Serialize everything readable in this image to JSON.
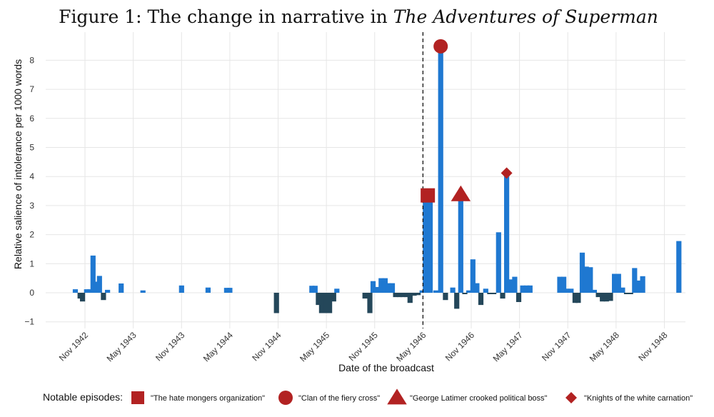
{
  "chart_data": {
    "type": "bar",
    "title": {
      "prefix": "Figure 1: The change in narrative in ",
      "italic": "The Adventures of Superman"
    },
    "xlabel": "Date of the broadcast",
    "ylabel": "Relative salience of intolerance per 1000 words",
    "ylim": [
      -1,
      8.7
    ],
    "yticks": [
      -1,
      0,
      1,
      2,
      3,
      4,
      5,
      6,
      7,
      8
    ],
    "ytick_labels": [
      "−1",
      "0",
      "1",
      "2",
      "3",
      "4",
      "5",
      "6",
      "7",
      "8"
    ],
    "xlim_months": [
      -2,
      73
    ],
    "xticks": [
      {
        "label": "Nov 1942",
        "month": 0
      },
      {
        "label": "May 1943",
        "month": 6
      },
      {
        "label": "Nov 1943",
        "month": 12
      },
      {
        "label": "May 1944",
        "month": 18
      },
      {
        "label": "Nov 1944",
        "month": 24
      },
      {
        "label": "May 1945",
        "month": 30
      },
      {
        "label": "Nov 1945",
        "month": 36
      },
      {
        "label": "May 1946",
        "month": 42
      },
      {
        "label": "Nov 1946",
        "month": 48
      },
      {
        "label": "May 1947",
        "month": 54
      },
      {
        "label": "Nov 1947",
        "month": 60
      },
      {
        "label": "May 1948",
        "month": 66
      },
      {
        "label": "Nov 1948",
        "month": 72
      }
    ],
    "reference_line_month": 42,
    "colors": {
      "positive": "#1f78d1",
      "negative": "#24475a",
      "marker": "#b22222"
    },
    "series": [
      {
        "name": "salience",
        "points": [
          {
            "month": -1.2,
            "value": 0.12
          },
          {
            "month": -0.6,
            "value": -0.2
          },
          {
            "month": -0.3,
            "value": -0.3
          },
          {
            "month": 0.2,
            "value": 0.12
          },
          {
            "month": 0.6,
            "value": 0.12
          },
          {
            "month": 1.0,
            "value": 1.28
          },
          {
            "month": 1.4,
            "value": 0.38
          },
          {
            "month": 1.8,
            "value": 0.58
          },
          {
            "month": 2.3,
            "value": -0.25
          },
          {
            "month": 2.8,
            "value": 0.1
          },
          {
            "month": 4.5,
            "value": 0.32
          },
          {
            "month": 7.2,
            "value": 0.08
          },
          {
            "month": 12.0,
            "value": 0.25
          },
          {
            "month": 15.3,
            "value": 0.18
          },
          {
            "month": 17.6,
            "value": 0.17
          },
          {
            "month": 18.0,
            "value": 0.17
          },
          {
            "month": 23.8,
            "value": -0.7
          },
          {
            "month": 28.2,
            "value": 0.24
          },
          {
            "month": 28.6,
            "value": 0.24
          },
          {
            "month": 29.0,
            "value": -0.42
          },
          {
            "month": 29.4,
            "value": -0.7
          },
          {
            "month": 29.9,
            "value": -0.7
          },
          {
            "month": 30.4,
            "value": -0.7
          },
          {
            "month": 30.9,
            "value": -0.3
          },
          {
            "month": 31.3,
            "value": 0.14
          },
          {
            "month": 34.8,
            "value": -0.2
          },
          {
            "month": 35.4,
            "value": -0.7
          },
          {
            "month": 35.8,
            "value": 0.4
          },
          {
            "month": 36.3,
            "value": 0.2
          },
          {
            "month": 36.8,
            "value": 0.5
          },
          {
            "month": 37.3,
            "value": 0.5
          },
          {
            "month": 37.7,
            "value": 0.33
          },
          {
            "month": 38.2,
            "value": 0.33
          },
          {
            "month": 38.6,
            "value": -0.15
          },
          {
            "month": 39.1,
            "value": -0.15
          },
          {
            "month": 39.5,
            "value": -0.15
          },
          {
            "month": 40.0,
            "value": -0.15
          },
          {
            "month": 40.4,
            "value": -0.35
          },
          {
            "month": 40.9,
            "value": -0.1
          },
          {
            "month": 41.4,
            "value": -0.08
          },
          {
            "month": 41.9,
            "value": 0.08
          },
          {
            "month": 42.3,
            "value": 3.32
          },
          {
            "month": 42.9,
            "value": 3.32
          },
          {
            "month": 43.6,
            "value": 0.08
          },
          {
            "month": 44.2,
            "value": 8.45
          },
          {
            "month": 44.8,
            "value": -0.25
          },
          {
            "month": 45.7,
            "value": 0.18
          },
          {
            "month": 46.2,
            "value": -0.55
          },
          {
            "month": 46.7,
            "value": 3.38
          },
          {
            "month": 47.2,
            "value": -0.05
          },
          {
            "month": 47.7,
            "value": 0.08
          },
          {
            "month": 48.2,
            "value": 1.15
          },
          {
            "month": 48.7,
            "value": 0.33
          },
          {
            "month": 49.2,
            "value": -0.42
          },
          {
            "month": 49.8,
            "value": 0.14
          },
          {
            "month": 50.3,
            "value": -0.05
          },
          {
            "month": 50.8,
            "value": -0.05
          },
          {
            "month": 51.4,
            "value": 2.08
          },
          {
            "month": 51.9,
            "value": -0.2
          },
          {
            "month": 52.4,
            "value": 4.12
          },
          {
            "month": 52.9,
            "value": 0.46
          },
          {
            "month": 53.4,
            "value": 0.55
          },
          {
            "month": 53.9,
            "value": -0.32
          },
          {
            "month": 54.4,
            "value": 0.25
          },
          {
            "month": 54.9,
            "value": 0.25
          },
          {
            "month": 55.3,
            "value": 0.25
          },
          {
            "month": 59.0,
            "value": 0.55
          },
          {
            "month": 59.5,
            "value": 0.55
          },
          {
            "month": 59.9,
            "value": 0.14
          },
          {
            "month": 60.4,
            "value": 0.14
          },
          {
            "month": 60.9,
            "value": -0.35
          },
          {
            "month": 61.3,
            "value": -0.35
          },
          {
            "month": 61.8,
            "value": 1.38
          },
          {
            "month": 62.3,
            "value": 0.9
          },
          {
            "month": 62.8,
            "value": 0.88
          },
          {
            "month": 63.3,
            "value": 0.1
          },
          {
            "month": 63.8,
            "value": -0.15
          },
          {
            "month": 64.3,
            "value": -0.3
          },
          {
            "month": 64.8,
            "value": -0.3
          },
          {
            "month": 65.3,
            "value": -0.28
          },
          {
            "month": 65.8,
            "value": 0.65
          },
          {
            "month": 66.3,
            "value": 0.65
          },
          {
            "month": 66.8,
            "value": 0.18
          },
          {
            "month": 67.3,
            "value": -0.05
          },
          {
            "month": 67.8,
            "value": -0.05
          },
          {
            "month": 68.3,
            "value": 0.85
          },
          {
            "month": 68.8,
            "value": 0.42
          },
          {
            "month": 69.3,
            "value": 0.57
          },
          {
            "month": 73.8,
            "value": 1.78
          }
        ]
      }
    ],
    "notable_episodes": [
      {
        "label": "\"The hate mongers organization\"",
        "shape": "square",
        "month": 42.6,
        "value": 3.35
      },
      {
        "label": "\"Clan of the fiery cross\"",
        "shape": "circle",
        "month": 44.2,
        "value": 8.48
      },
      {
        "label": "\"George Latimer crooked political boss\"",
        "shape": "triangle",
        "month": 46.7,
        "value": 3.38
      },
      {
        "label": "\"Knights of the white carnation\"",
        "shape": "diamond",
        "month": 52.4,
        "value": 4.12
      }
    ],
    "legend": {
      "title": "Notable episodes:",
      "position": "bottom"
    }
  }
}
